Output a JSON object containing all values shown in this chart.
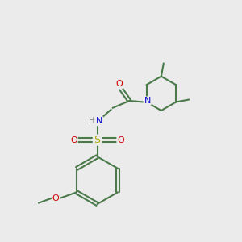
{
  "background_color": "#ebebeb",
  "bond_color": "#4a7a4a",
  "nitrogen_color": "#0000cc",
  "oxygen_color": "#cc0000",
  "sulfur_color": "#aaaa00",
  "text_color": "#000000",
  "gray_color": "#808080",
  "line_width": 1.5,
  "figsize": [
    3.0,
    3.0
  ],
  "dpi": 100,
  "xlim": [
    0,
    10
  ],
  "ylim": [
    0,
    10
  ]
}
